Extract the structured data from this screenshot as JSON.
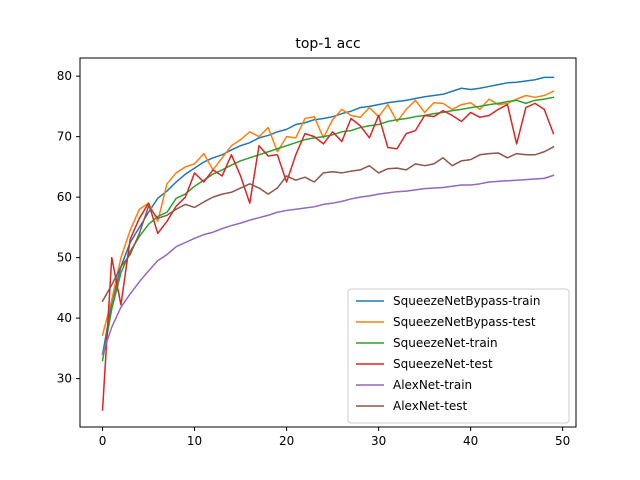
{
  "chart_data": {
    "type": "line",
    "title": "top-1 acc",
    "xlabel": "",
    "ylabel": "",
    "xlim": [
      -2.45,
      51.45
    ],
    "ylim": [
      22.0,
      83.0
    ],
    "xticks": [
      0,
      10,
      20,
      30,
      40,
      50
    ],
    "yticks": [
      30,
      40,
      50,
      60,
      70,
      80
    ],
    "xtick_labels": [
      "0",
      "10",
      "20",
      "30",
      "40",
      "50"
    ],
    "ytick_labels": [
      "30",
      "40",
      "50",
      "60",
      "70",
      "80"
    ],
    "grid": false,
    "legend_position": "lower-right",
    "x": [
      0,
      1,
      2,
      3,
      4,
      5,
      6,
      7,
      8,
      9,
      10,
      11,
      12,
      13,
      14,
      15,
      16,
      17,
      18,
      19,
      20,
      21,
      22,
      23,
      24,
      25,
      26,
      27,
      28,
      29,
      30,
      31,
      32,
      33,
      34,
      35,
      36,
      37,
      38,
      39,
      40,
      41,
      42,
      43,
      44,
      45,
      46,
      47,
      48,
      49
    ],
    "series": [
      {
        "name": "SqueezeNetBypass-train",
        "color": "#1f77b4",
        "values": [
          34.0,
          42.5,
          48.5,
          52.5,
          55.0,
          57.5,
          59.8,
          61.0,
          62.5,
          63.8,
          64.8,
          65.8,
          66.5,
          67.0,
          67.8,
          68.5,
          69.0,
          69.8,
          70.2,
          70.8,
          71.2,
          72.0,
          72.3,
          72.8,
          73.0,
          73.3,
          73.8,
          74.2,
          74.8,
          75.0,
          75.3,
          75.6,
          75.8,
          76.0,
          76.3,
          76.6,
          76.8,
          77.0,
          77.5,
          78.0,
          77.8,
          78.0,
          78.3,
          78.6,
          78.9,
          79.0,
          79.2,
          79.4,
          79.8,
          79.8
        ]
      },
      {
        "name": "SqueezeNetBypass-test",
        "color": "#ff7f0e",
        "values": [
          37.2,
          43.0,
          50.0,
          54.5,
          58.0,
          59.0,
          56.0,
          62.2,
          64.0,
          65.0,
          65.5,
          67.2,
          64.5,
          66.5,
          68.5,
          69.5,
          70.8,
          70.0,
          71.5,
          67.5,
          70.0,
          69.8,
          73.0,
          73.3,
          69.8,
          72.8,
          74.5,
          73.5,
          73.2,
          74.8,
          73.3,
          75.3,
          72.5,
          74.5,
          76.0,
          74.0,
          75.6,
          75.5,
          74.5,
          75.3,
          75.6,
          74.5,
          76.2,
          75.3,
          75.5,
          76.2,
          76.8,
          76.5,
          76.8,
          77.5
        ]
      },
      {
        "name": "SqueezeNet-train",
        "color": "#2ca02c",
        "values": [
          33.0,
          41.5,
          47.5,
          51.0,
          53.5,
          55.5,
          56.8,
          57.5,
          59.8,
          60.5,
          61.8,
          62.8,
          63.8,
          64.5,
          65.3,
          66.0,
          66.5,
          67.0,
          67.5,
          68.0,
          68.5,
          69.0,
          69.5,
          69.8,
          70.0,
          70.3,
          70.8,
          71.0,
          71.5,
          71.8,
          72.0,
          72.5,
          72.8,
          73.0,
          73.3,
          73.5,
          73.8,
          74.0,
          74.3,
          74.5,
          74.8,
          75.0,
          75.3,
          75.5,
          75.8,
          76.0,
          75.5,
          76.0,
          76.2,
          76.5
        ]
      },
      {
        "name": "SqueezeNet-test",
        "color": "#d62728",
        "values": [
          24.8,
          50.0,
          42.2,
          53.0,
          56.5,
          59.0,
          54.0,
          56.0,
          58.5,
          60.0,
          64.0,
          62.5,
          64.5,
          63.5,
          67.0,
          63.5,
          59.0,
          68.5,
          66.8,
          67.0,
          62.5,
          67.0,
          70.5,
          70.0,
          68.8,
          70.8,
          69.2,
          73.0,
          71.8,
          69.8,
          73.5,
          68.2,
          68.0,
          70.5,
          71.0,
          73.5,
          73.3,
          74.3,
          73.5,
          72.5,
          74.0,
          73.2,
          73.5,
          74.5,
          75.3,
          68.8,
          74.8,
          75.5,
          74.5,
          70.5
        ]
      },
      {
        "name": "AlexNet-train",
        "color": "#9467bd",
        "values": [
          34.0,
          38.5,
          41.8,
          44.0,
          46.0,
          47.8,
          49.5,
          50.5,
          51.8,
          52.5,
          53.2,
          53.8,
          54.2,
          54.8,
          55.3,
          55.7,
          56.2,
          56.6,
          57.0,
          57.5,
          57.8,
          58.0,
          58.2,
          58.4,
          58.8,
          59.0,
          59.3,
          59.7,
          60.0,
          60.2,
          60.5,
          60.7,
          60.9,
          61.0,
          61.2,
          61.4,
          61.5,
          61.6,
          61.8,
          62.0,
          62.0,
          62.2,
          62.5,
          62.6,
          62.7,
          62.8,
          62.9,
          63.0,
          63.1,
          63.6
        ]
      },
      {
        "name": "AlexNet-test",
        "color": "#8c564b",
        "values": [
          42.8,
          45.5,
          48.5,
          50.5,
          54.0,
          58.5,
          56.5,
          57.0,
          58.0,
          58.8,
          58.3,
          59.2,
          60.0,
          60.5,
          60.8,
          61.5,
          62.2,
          61.5,
          60.5,
          61.5,
          63.5,
          62.8,
          63.3,
          62.5,
          64.0,
          64.2,
          64.0,
          64.3,
          64.5,
          65.2,
          64.0,
          64.7,
          64.8,
          64.5,
          65.5,
          65.2,
          65.5,
          66.5,
          65.2,
          66.0,
          66.2,
          67.0,
          67.2,
          67.3,
          66.5,
          67.2,
          67.0,
          67.0,
          67.5,
          68.3
        ]
      }
    ]
  }
}
